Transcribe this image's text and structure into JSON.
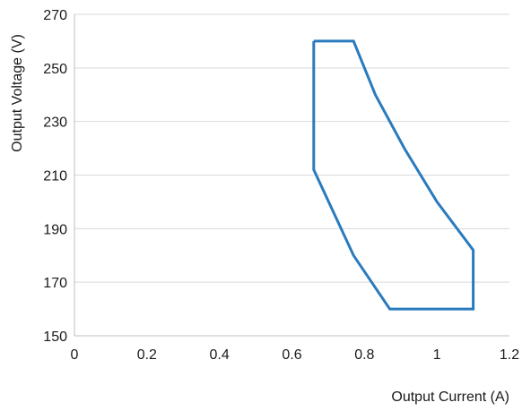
{
  "chart_data": {
    "type": "line",
    "title": "",
    "xlabel": "Output Current (A)",
    "ylabel": "Output Voltage (V)",
    "xlim": [
      0,
      1.2
    ],
    "ylim": [
      150,
      270
    ],
    "xticks": [
      0,
      0.2,
      0.4,
      0.6,
      0.8,
      1,
      1.2
    ],
    "xtick_labels": [
      "0",
      "0.2",
      "0.4",
      "0.6",
      "0.8",
      "1",
      "1.2"
    ],
    "yticks": [
      150,
      170,
      190,
      210,
      230,
      250,
      270
    ],
    "ytick_labels": [
      "150",
      "170",
      "190",
      "210",
      "230",
      "250",
      "270"
    ],
    "grid": "horizontal",
    "legend": "none",
    "series": [
      {
        "color": "#2a7bbd",
        "x": [
          0.66,
          0.77,
          0.83,
          0.91,
          1.0,
          1.1,
          1.1,
          0.87,
          0.77,
          0.66,
          0.66
        ],
        "y": [
          260,
          260,
          240,
          220,
          200,
          182,
          160,
          160,
          180,
          212,
          260
        ]
      }
    ]
  }
}
